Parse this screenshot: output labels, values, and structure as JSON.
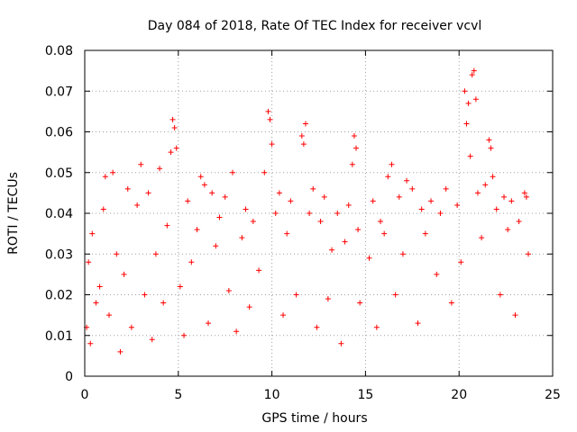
{
  "chart_data": {
    "type": "scatter",
    "title": "Day 084 of 2018, Rate Of TEC Index for receiver vcvl",
    "xlabel": "GPS time / hours",
    "ylabel": "ROTI / TECUs",
    "xlim": [
      0,
      25
    ],
    "ylim": [
      0,
      0.08
    ],
    "x_ticks": [
      0,
      5,
      10,
      15,
      20,
      25
    ],
    "x_tick_labels": [
      "0",
      "5",
      "10",
      "15",
      "20",
      "25"
    ],
    "y_ticks": [
      0,
      0.01,
      0.02,
      0.03,
      0.04,
      0.05,
      0.06,
      0.07,
      0.08
    ],
    "y_tick_labels": [
      "0",
      "0.01",
      "0.02",
      "0.03",
      "0.04",
      "0.05",
      "0.06",
      "0.07",
      "0.08"
    ],
    "grid": true,
    "marker": "+",
    "series": [
      {
        "name": "ROTI",
        "color": "#ff0000",
        "points": [
          [
            0.1,
            0.012
          ],
          [
            0.2,
            0.028
          ],
          [
            0.3,
            0.008
          ],
          [
            0.4,
            0.035
          ],
          [
            0.6,
            0.018
          ],
          [
            0.8,
            0.022
          ],
          [
            1.0,
            0.041
          ],
          [
            1.1,
            0.049
          ],
          [
            1.3,
            0.015
          ],
          [
            1.5,
            0.05
          ],
          [
            1.7,
            0.03
          ],
          [
            1.9,
            0.006
          ],
          [
            2.1,
            0.025
          ],
          [
            2.3,
            0.046
          ],
          [
            2.5,
            0.012
          ],
          [
            2.8,
            0.042
          ],
          [
            3.0,
            0.052
          ],
          [
            3.2,
            0.02
          ],
          [
            3.4,
            0.045
          ],
          [
            3.6,
            0.009
          ],
          [
            3.8,
            0.03
          ],
          [
            4.0,
            0.051
          ],
          [
            4.2,
            0.018
          ],
          [
            4.4,
            0.037
          ],
          [
            4.6,
            0.055
          ],
          [
            4.7,
            0.063
          ],
          [
            4.8,
            0.061
          ],
          [
            4.9,
            0.056
          ],
          [
            5.1,
            0.022
          ],
          [
            5.3,
            0.01
          ],
          [
            5.5,
            0.043
          ],
          [
            5.7,
            0.028
          ],
          [
            6.0,
            0.036
          ],
          [
            6.2,
            0.049
          ],
          [
            6.4,
            0.047
          ],
          [
            6.6,
            0.013
          ],
          [
            6.8,
            0.045
          ],
          [
            7.0,
            0.032
          ],
          [
            7.2,
            0.039
          ],
          [
            7.5,
            0.044
          ],
          [
            7.7,
            0.021
          ],
          [
            7.9,
            0.05
          ],
          [
            8.1,
            0.011
          ],
          [
            8.4,
            0.034
          ],
          [
            8.6,
            0.041
          ],
          [
            8.8,
            0.017
          ],
          [
            9.0,
            0.038
          ],
          [
            9.3,
            0.026
          ],
          [
            9.6,
            0.05
          ],
          [
            9.8,
            0.065
          ],
          [
            9.9,
            0.063
          ],
          [
            10.0,
            0.057
          ],
          [
            10.2,
            0.04
          ],
          [
            10.4,
            0.045
          ],
          [
            10.6,
            0.015
          ],
          [
            10.8,
            0.035
          ],
          [
            11.0,
            0.043
          ],
          [
            11.3,
            0.02
          ],
          [
            11.6,
            0.059
          ],
          [
            11.7,
            0.057
          ],
          [
            11.8,
            0.062
          ],
          [
            12.0,
            0.04
          ],
          [
            12.2,
            0.046
          ],
          [
            12.4,
            0.012
          ],
          [
            12.6,
            0.038
          ],
          [
            12.8,
            0.044
          ],
          [
            13.0,
            0.019
          ],
          [
            13.2,
            0.031
          ],
          [
            13.5,
            0.04
          ],
          [
            13.7,
            0.008
          ],
          [
            13.9,
            0.033
          ],
          [
            14.1,
            0.042
          ],
          [
            14.3,
            0.052
          ],
          [
            14.4,
            0.059
          ],
          [
            14.5,
            0.056
          ],
          [
            14.6,
            0.036
          ],
          [
            14.7,
            0.018
          ],
          [
            15.2,
            0.029
          ],
          [
            15.4,
            0.043
          ],
          [
            15.6,
            0.012
          ],
          [
            15.8,
            0.038
          ],
          [
            16.0,
            0.035
          ],
          [
            16.2,
            0.049
          ],
          [
            16.4,
            0.052
          ],
          [
            16.6,
            0.02
          ],
          [
            16.8,
            0.044
          ],
          [
            17.0,
            0.03
          ],
          [
            17.2,
            0.048
          ],
          [
            17.5,
            0.046
          ],
          [
            17.8,
            0.013
          ],
          [
            18.0,
            0.041
          ],
          [
            18.2,
            0.035
          ],
          [
            18.5,
            0.043
          ],
          [
            18.8,
            0.025
          ],
          [
            19.0,
            0.04
          ],
          [
            19.3,
            0.046
          ],
          [
            19.6,
            0.018
          ],
          [
            19.9,
            0.042
          ],
          [
            20.1,
            0.028
          ],
          [
            20.3,
            0.07
          ],
          [
            20.4,
            0.062
          ],
          [
            20.5,
            0.067
          ],
          [
            20.6,
            0.054
          ],
          [
            20.7,
            0.074
          ],
          [
            20.8,
            0.075
          ],
          [
            20.9,
            0.068
          ],
          [
            21.0,
            0.045
          ],
          [
            21.2,
            0.034
          ],
          [
            21.4,
            0.047
          ],
          [
            21.6,
            0.058
          ],
          [
            21.7,
            0.056
          ],
          [
            21.8,
            0.049
          ],
          [
            22.0,
            0.041
          ],
          [
            22.2,
            0.02
          ],
          [
            22.4,
            0.044
          ],
          [
            22.6,
            0.036
          ],
          [
            22.8,
            0.043
          ],
          [
            23.0,
            0.015
          ],
          [
            23.2,
            0.038
          ],
          [
            23.5,
            0.045
          ],
          [
            23.6,
            0.044
          ],
          [
            23.7,
            0.03
          ]
        ]
      }
    ]
  }
}
